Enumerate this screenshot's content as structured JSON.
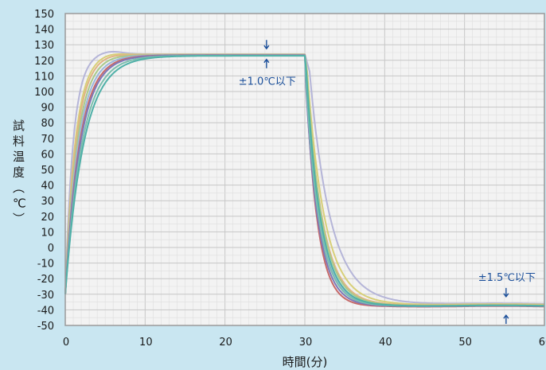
{
  "chart_data": {
    "type": "line",
    "xlabel": "時間(分)",
    "ylabel": "試料温度(℃)",
    "xlim": [
      0,
      60
    ],
    "ylim": [
      -50,
      150
    ],
    "x_ticks": [
      0,
      10,
      20,
      30,
      40,
      50,
      60
    ],
    "y_ticks": [
      150,
      140,
      130,
      120,
      110,
      100,
      90,
      80,
      70,
      60,
      50,
      40,
      30,
      20,
      10,
      0,
      -10,
      -20,
      -30,
      -40,
      -50
    ],
    "grid": true,
    "legend": "none",
    "hot_plateau": {
      "start_min": 0,
      "switch_min": 30,
      "target_c": 124
    },
    "cold_plateau": {
      "target_c": -37
    },
    "series": [
      {
        "color": "#b5b5d8",
        "t_rise": 1.0,
        "cold_delay": 0.6,
        "tau_c": 2.6,
        "hot_level": 124.0,
        "overshoot": 2.0,
        "cold_level": -36.0
      },
      {
        "color": "#d8cf78",
        "t_rise": 1.25,
        "cold_delay": 0.3,
        "tau_c": 2.2,
        "hot_level": 123.8,
        "overshoot": 1.2,
        "cold_level": -36.5
      },
      {
        "color": "#e0b483",
        "t_rise": 1.35,
        "cold_delay": 0.2,
        "tau_c": 2.0,
        "hot_level": 123.6,
        "overshoot": 0.8,
        "cold_level": -37.0
      },
      {
        "color": "#a9c98a",
        "t_rise": 1.5,
        "cold_delay": 0.25,
        "tau_c": 1.9,
        "hot_level": 123.5,
        "overshoot": 0.4,
        "cold_level": -37.2
      },
      {
        "color": "#9bb7dc",
        "t_rise": 1.65,
        "cold_delay": 0.15,
        "tau_c": 1.75,
        "hot_level": 123.4,
        "overshoot": 0.0,
        "cold_level": -37.5
      },
      {
        "color": "#c66a6a",
        "t_rise": 1.8,
        "cold_delay": 0.0,
        "tau_c": 1.45,
        "hot_level": 123.3,
        "overshoot": 0.0,
        "cold_level": -37.8
      },
      {
        "color": "#7e78b8",
        "t_rise": 1.9,
        "cold_delay": 0.05,
        "tau_c": 1.6,
        "hot_level": 123.2,
        "overshoot": 0.0,
        "cold_level": -37.6
      },
      {
        "color": "#7bbfae",
        "t_rise": 2.1,
        "cold_delay": 0.1,
        "tau_c": 1.7,
        "hot_level": 123.0,
        "overshoot": 0.0,
        "cold_level": -37.4
      },
      {
        "color": "#4fb0a8",
        "t_rise": 2.3,
        "cold_delay": 0.2,
        "tau_c": 1.8,
        "hot_level": 122.9,
        "overshoot": 0.0,
        "cold_level": -37.3
      }
    ],
    "annotations": [
      {
        "text": "±1.0℃以下",
        "x": 25.2,
        "arrow_top": 130,
        "arrow_bottom": 118,
        "text_y": 107
      },
      {
        "text": "±1.5℃以下",
        "x": 55.2,
        "arrow_top": -29,
        "arrow_bottom": -46,
        "text_y": -19
      }
    ],
    "colors": {
      "frame": "#9a9a9a",
      "plot_bg": "#f3f3f3",
      "grid_minor": "#dedede",
      "grid_major": "#c6c6c6",
      "annotation": "#1b4f9a"
    }
  }
}
